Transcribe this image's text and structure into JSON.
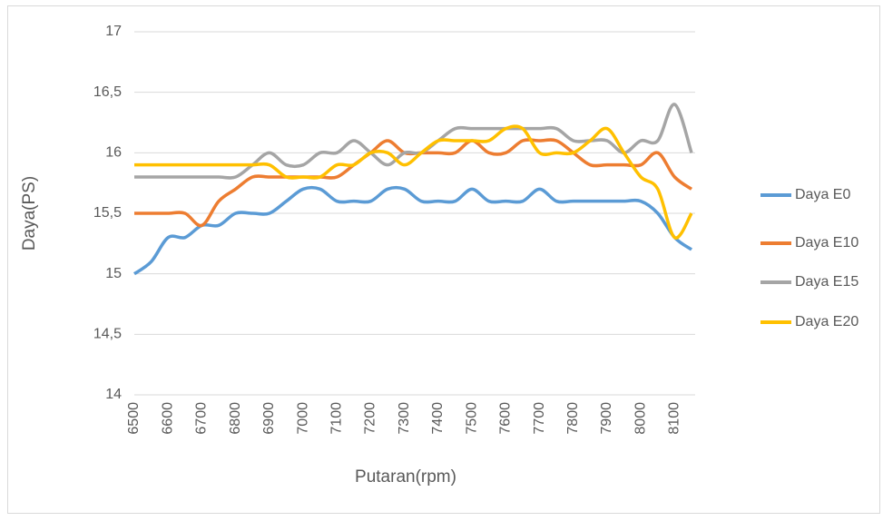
{
  "chart_data": {
    "type": "line",
    "x_label": "Putaran(rpm)",
    "y_label": "Daya(PS)",
    "x": [
      6500,
      6550,
      6600,
      6650,
      6700,
      6750,
      6800,
      6850,
      6900,
      6950,
      7000,
      7050,
      7100,
      7150,
      7200,
      7250,
      7300,
      7350,
      7400,
      7450,
      7500,
      7550,
      7600,
      7650,
      7700,
      7750,
      7800,
      7850,
      7900,
      7950,
      8000,
      8050,
      8100,
      8150
    ],
    "xlim": [
      6500,
      8150
    ],
    "xticks": [
      6500,
      6600,
      6700,
      6800,
      6900,
      7000,
      7100,
      7200,
      7300,
      7400,
      7500,
      7600,
      7700,
      7800,
      7900,
      8000,
      8100
    ],
    "ylim": [
      14,
      17
    ],
    "yticks": [
      14,
      {
        "value": 14.5,
        "label": "14,5"
      },
      15,
      {
        "value": 15.5,
        "label": "15,5"
      },
      16,
      {
        "value": 16.5,
        "label": "16,5"
      },
      17
    ],
    "grid": true,
    "legend": "right",
    "series": [
      {
        "name": "Daya E0",
        "color": "#5b9bd5",
        "values": [
          15.0,
          15.1,
          15.3,
          15.3,
          15.4,
          15.4,
          15.5,
          15.5,
          15.5,
          15.6,
          15.7,
          15.7,
          15.6,
          15.6,
          15.6,
          15.7,
          15.7,
          15.6,
          15.6,
          15.6,
          15.7,
          15.6,
          15.6,
          15.6,
          15.7,
          15.6,
          15.6,
          15.6,
          15.6,
          15.6,
          15.6,
          15.5,
          15.3,
          15.2
        ]
      },
      {
        "name": "Daya E10",
        "color": "#ed7d31",
        "values": [
          15.5,
          15.5,
          15.5,
          15.5,
          15.4,
          15.6,
          15.7,
          15.8,
          15.8,
          15.8,
          15.8,
          15.8,
          15.8,
          15.9,
          16.0,
          16.1,
          16.0,
          16.0,
          16.0,
          16.0,
          16.1,
          16.0,
          16.0,
          16.1,
          16.1,
          16.1,
          16.0,
          15.9,
          15.9,
          15.9,
          15.9,
          16.0,
          15.8,
          15.7
        ]
      },
      {
        "name": "Daya E15",
        "color": "#a5a5a5",
        "values": [
          15.8,
          15.8,
          15.8,
          15.8,
          15.8,
          15.8,
          15.8,
          15.9,
          16.0,
          15.9,
          15.9,
          16.0,
          16.0,
          16.1,
          16.0,
          15.9,
          16.0,
          16.0,
          16.1,
          16.2,
          16.2,
          16.2,
          16.2,
          16.2,
          16.2,
          16.2,
          16.1,
          16.1,
          16.1,
          16.0,
          16.1,
          16.1,
          16.4,
          16.0
        ]
      },
      {
        "name": "Daya E20",
        "color": "#ffc000",
        "values": [
          15.9,
          15.9,
          15.9,
          15.9,
          15.9,
          15.9,
          15.9,
          15.9,
          15.9,
          15.8,
          15.8,
          15.8,
          15.9,
          15.9,
          16.0,
          16.0,
          15.9,
          16.0,
          16.1,
          16.1,
          16.1,
          16.1,
          16.2,
          16.2,
          16.0,
          16.0,
          16.0,
          16.1,
          16.2,
          16.0,
          15.8,
          15.7,
          15.3,
          15.5
        ]
      }
    ]
  }
}
